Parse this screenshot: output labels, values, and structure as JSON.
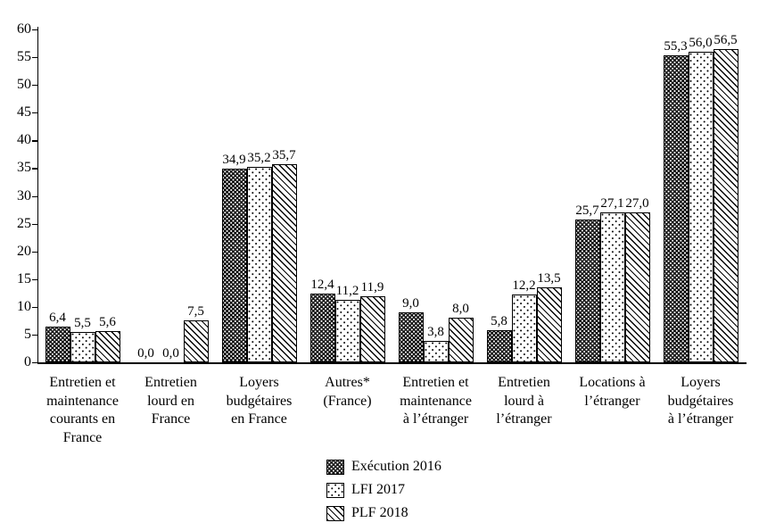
{
  "figure": {
    "background": "#ffffff",
    "foreground": "#000000"
  },
  "chart_data": {
    "type": "bar",
    "title": "",
    "xlabel": "",
    "ylabel": "",
    "ylim": [
      0,
      60
    ],
    "ytick_step": 5,
    "yticks": [
      "0",
      "5",
      "10",
      "15",
      "20",
      "25",
      "30",
      "35",
      "40",
      "45",
      "50",
      "55",
      "60"
    ],
    "grid": false,
    "legend_position": "bottom",
    "categories": [
      "Entretien et\nmaintenance\ncourants en\nFrance",
      "Entretien\nlourd en\nFrance",
      "Loyers\nbudgétaires\nen France",
      "Autres*\n(France)",
      "Entretien et\nmaintenance\nà l’étranger",
      "Entretien\nlourd à\nl’étranger",
      "Locations à\nl’étranger",
      "Loyers\nbudgétaires\nà l’étranger"
    ],
    "series": [
      {
        "name": "Exécution 2016",
        "pattern": "black-with-white-dots",
        "values": [
          6.4,
          0.0,
          34.9,
          12.4,
          9.0,
          5.8,
          25.7,
          55.3
        ],
        "labels": [
          "6,4",
          "0,0",
          "34,9",
          "12,4",
          "9,0",
          "5,8",
          "25,7",
          "55,3"
        ]
      },
      {
        "name": "LFI 2017",
        "pattern": "white-with-black-dots",
        "values": [
          5.5,
          0.0,
          35.2,
          11.2,
          3.8,
          12.2,
          27.1,
          56.0
        ],
        "labels": [
          "5,5",
          "0,0",
          "35,2",
          "11,2",
          "3,8",
          "12,2",
          "27,1",
          "56,0"
        ]
      },
      {
        "name": "PLF 2018",
        "pattern": "diagonal-hatch",
        "values": [
          5.6,
          7.5,
          35.7,
          11.9,
          8.0,
          13.5,
          27.0,
          56.5
        ],
        "labels": [
          "5,6",
          "7,5",
          "35,7",
          "11,9",
          "8,0",
          "13,5",
          "27,0",
          "56,5"
        ]
      }
    ]
  }
}
